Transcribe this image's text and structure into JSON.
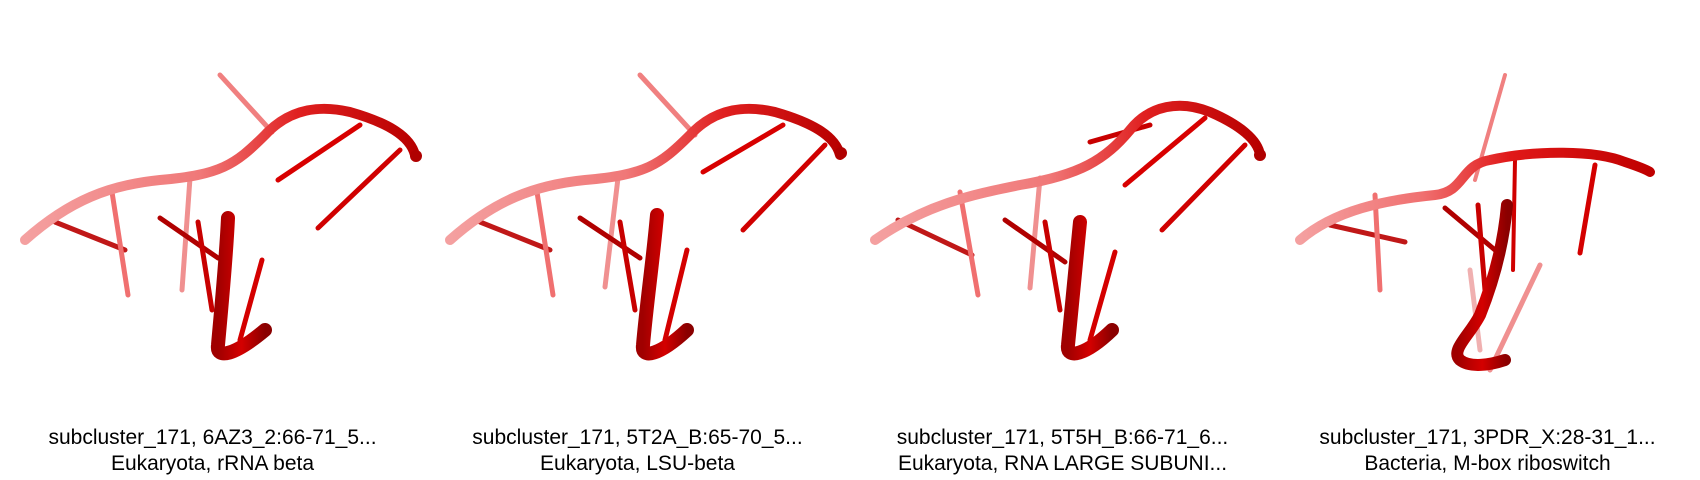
{
  "structure_color": "#d40000",
  "structure_light_color": "#f39a9a",
  "panels": [
    {
      "title": "subcluster_171, 6AZ3_2:66-71_5...",
      "subtitle": "Eukaryota, rRNA beta",
      "image": "rna-cartoon-red"
    },
    {
      "title": "subcluster_171, 5T2A_B:65-70_5...",
      "subtitle": "Eukaryota, LSU-beta",
      "image": "rna-cartoon-red"
    },
    {
      "title": "subcluster_171, 5T5H_B:66-71_6...",
      "subtitle": "Eukaryota, RNA LARGE SUBUNI...",
      "image": "rna-cartoon-red"
    },
    {
      "title": "subcluster_171, 3PDR_X:28-31_1...",
      "subtitle": "Bacteria, M-box riboswitch",
      "image": "rna-cartoon-red"
    }
  ]
}
